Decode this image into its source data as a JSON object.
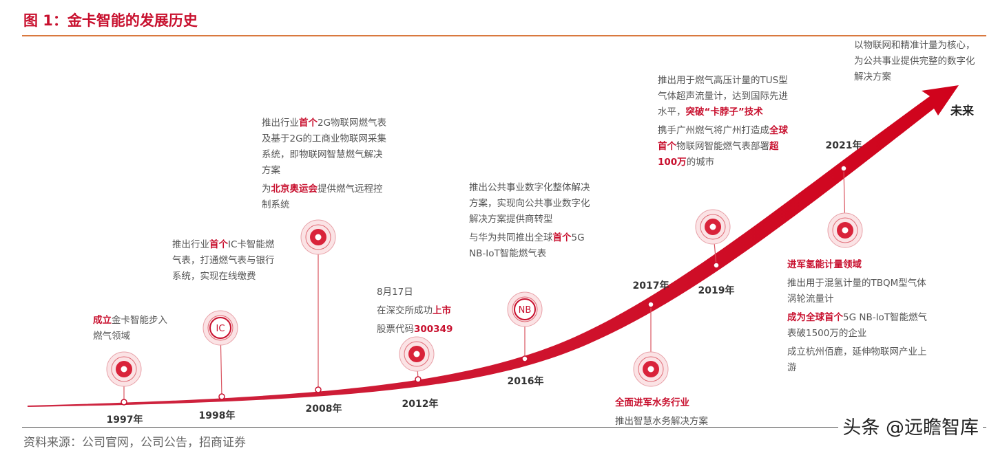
{
  "title": "图 1：金卡智能的发展历史",
  "source": "资料来源：公司官网，公司公告，招商证券",
  "watermark": "头条 @远瞻智库",
  "milestones": [
    {
      "year": "1997年",
      "paragraphs": [
        [
          {
            "text": "成立",
            "red": true
          },
          {
            "text": "金卡智能步入燃气领域"
          }
        ]
      ]
    },
    {
      "year": "1998年",
      "icon_label": "IC",
      "paragraphs": [
        [
          {
            "text": "推出行业"
          },
          {
            "text": "首个",
            "red": true
          },
          {
            "text": "IC卡智能燃气表，打通燃气表与银行系统，实现在线缴费"
          }
        ]
      ]
    },
    {
      "year": "2008年",
      "paragraphs": [
        [
          {
            "text": "推出行业"
          },
          {
            "text": "首个",
            "red": true
          },
          {
            "text": "2G物联网燃气表及基于2G的工商业物联网采集系统，即物联网智慧燃气解决方案"
          }
        ],
        [
          {
            "text": "为"
          },
          {
            "text": "北京奥运会",
            "red": true
          },
          {
            "text": "提供燃气远程控制系统"
          }
        ]
      ]
    },
    {
      "year": "2012年",
      "paragraphs": [
        [
          {
            "text": "8月17日"
          }
        ],
        [
          {
            "text": "在深交所成功"
          },
          {
            "text": "上市",
            "red": true
          }
        ],
        [
          {
            "text": "股票代码"
          },
          {
            "text": "300349",
            "red": true
          }
        ]
      ]
    },
    {
      "year": "2016年",
      "icon_label": "NB",
      "paragraphs": [
        [
          {
            "text": "推出公共事业数字化整体解决方案，实现向公共事业数字化解决方案提供商转型"
          }
        ],
        [
          {
            "text": "与华为共同推出全球"
          },
          {
            "text": "首个",
            "red": true
          },
          {
            "text": "5G NB-IoT智能燃气表"
          }
        ]
      ]
    },
    {
      "year": "2017年",
      "paragraphs": [
        [
          {
            "text": "全面进军水务行业",
            "red": true
          }
        ],
        [
          {
            "text": "推出智慧水务解决方案"
          }
        ]
      ]
    },
    {
      "year": "2019年",
      "paragraphs": [
        [
          {
            "text": "推出用于燃气高压计量的TUS型气体超声流量计，达到国际先进水平，"
          },
          {
            "text": "突破“卡脖子”技术",
            "red": true
          }
        ],
        [
          {
            "text": "携手广州燃气将广州打造成"
          },
          {
            "text": "全球首个",
            "red": true
          },
          {
            "text": "物联网智能燃气表部署"
          },
          {
            "text": "超100万",
            "red": true
          },
          {
            "text": "的城市"
          }
        ]
      ]
    },
    {
      "year": "2021年",
      "paragraphs": [
        [
          {
            "text": "进军氢能计量领域",
            "red": true
          }
        ],
        [
          {
            "text": "推出用于混氢计量的TBQM型气体涡轮流量计"
          }
        ],
        [
          {
            "text": "成为全球首个",
            "red": true
          },
          {
            "text": "5G NB-IoT智能燃气表破1500万的企业"
          }
        ],
        [
          {
            "text": "成立杭州佰鹿，延伸物联网产业上游"
          }
        ]
      ]
    }
  ],
  "future": {
    "label": "未来",
    "text": "以物联网和精准计量为核心，为公共事业提供完整的数字化解决方案"
  }
}
